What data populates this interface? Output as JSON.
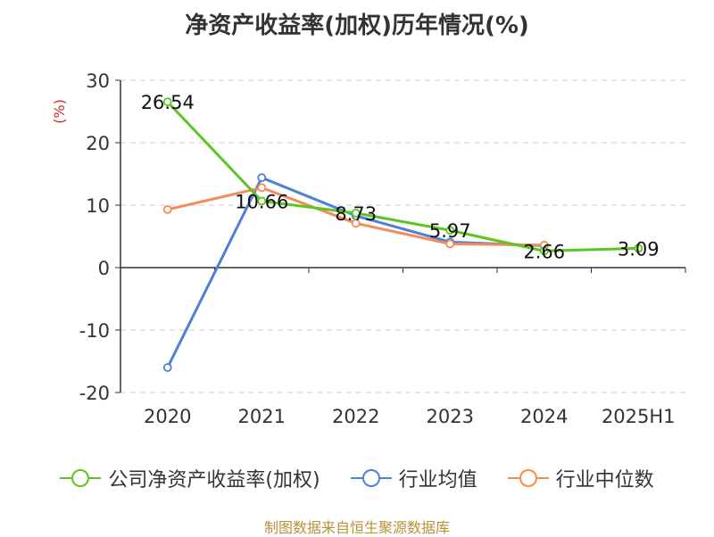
{
  "title": "净资产收益率(加权)历年情况(%)",
  "source": "制图数据来自恒生聚源数据库",
  "chart_data": {
    "type": "line",
    "categories": [
      "2020",
      "2021",
      "2022",
      "2023",
      "2024",
      "2025H1"
    ],
    "ylabel": "(%)",
    "ylim": [
      -20,
      30
    ],
    "yticks": [
      30,
      20,
      10,
      0,
      -10,
      -20
    ],
    "grid": true,
    "legend_position": "bottom",
    "series": [
      {
        "name": "公司净资产收益率(加权)",
        "color": "#5dc523",
        "values": [
          26.54,
          10.66,
          8.73,
          5.97,
          2.66,
          3.09
        ],
        "labels": [
          "26.54",
          "10.66",
          "8.73",
          "5.97",
          "2.66",
          "3.09"
        ]
      },
      {
        "name": "行业均值",
        "color": "#4d80d6",
        "values": [
          -16.0,
          14.4,
          8.3,
          4.1,
          3.5,
          null
        ]
      },
      {
        "name": "行业中位数",
        "color": "#f48b58",
        "values": [
          9.3,
          12.8,
          7.1,
          3.8,
          3.6,
          null
        ]
      }
    ]
  }
}
